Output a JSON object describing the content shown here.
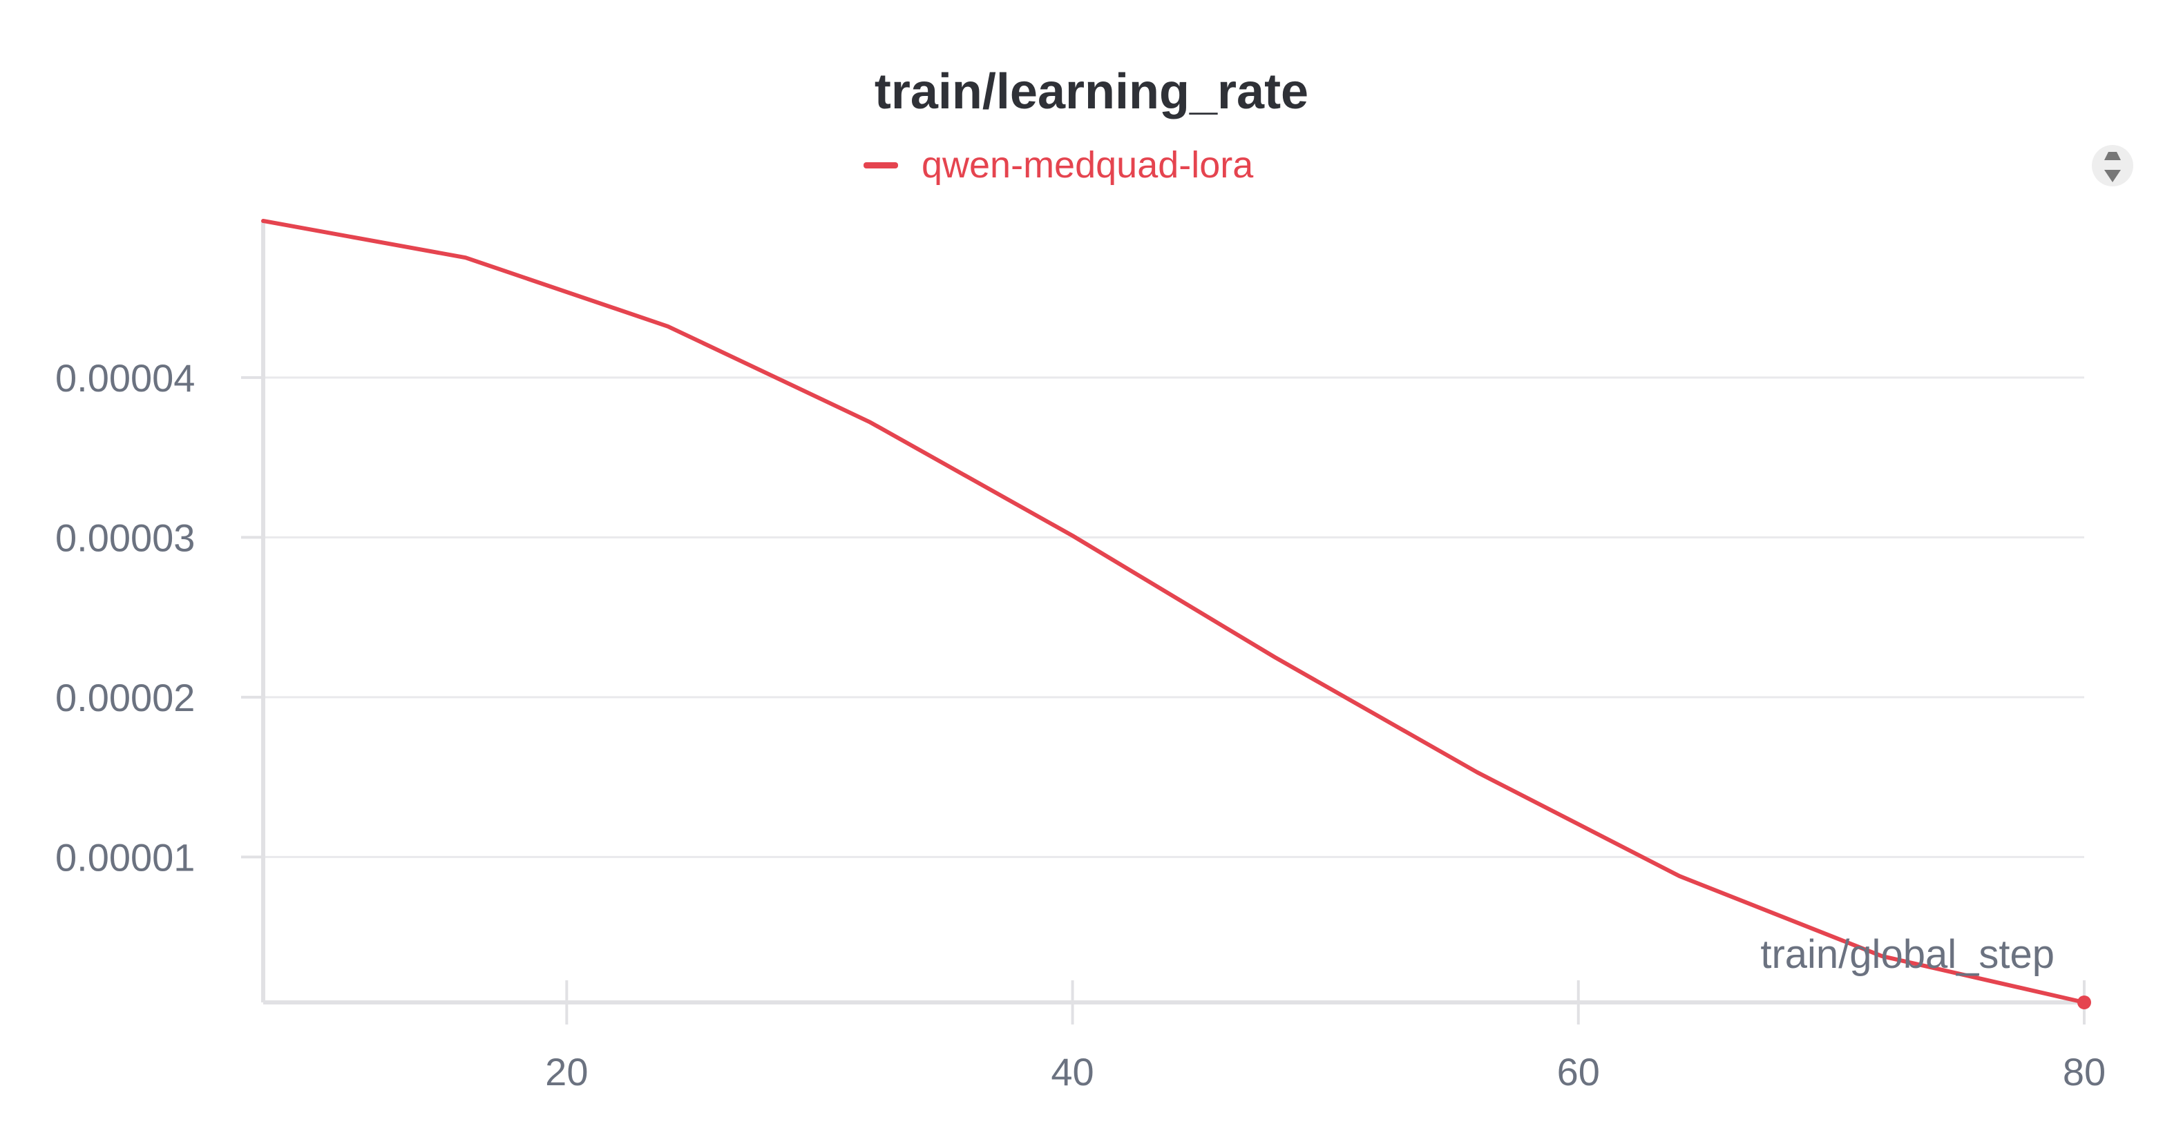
{
  "chart_data": {
    "type": "line",
    "title": "train/learning_rate",
    "xlabel": "train/global_step",
    "ylabel": "",
    "xlim": [
      8,
      80
    ],
    "ylim": [
      9e-07,
      4.98e-05
    ],
    "xticks": [
      20,
      40,
      60,
      80
    ],
    "xtick_labels": [
      "20",
      "40",
      "60",
      "80"
    ],
    "yticks": [
      1e-05,
      2e-05,
      3e-05,
      4e-05
    ],
    "ytick_labels": [
      "0.00001",
      "0.00002",
      "0.00003",
      "0.00004"
    ],
    "grid": true,
    "legend": "top-center",
    "series": [
      {
        "name": "qwen-medquad-lora",
        "color": "#e5444f",
        "x": [
          8,
          16,
          24,
          32,
          40,
          48,
          56,
          64,
          72,
          80
        ],
        "values": [
          4.98e-05,
          4.75e-05,
          4.32e-05,
          3.72e-05,
          3.01e-05,
          2.25e-05,
          1.53e-05,
          8.8e-06,
          3.8e-06,
          9e-07
        ]
      }
    ]
  },
  "icons": {
    "legend_scroll": "legend-scroll-arrows-icon"
  }
}
